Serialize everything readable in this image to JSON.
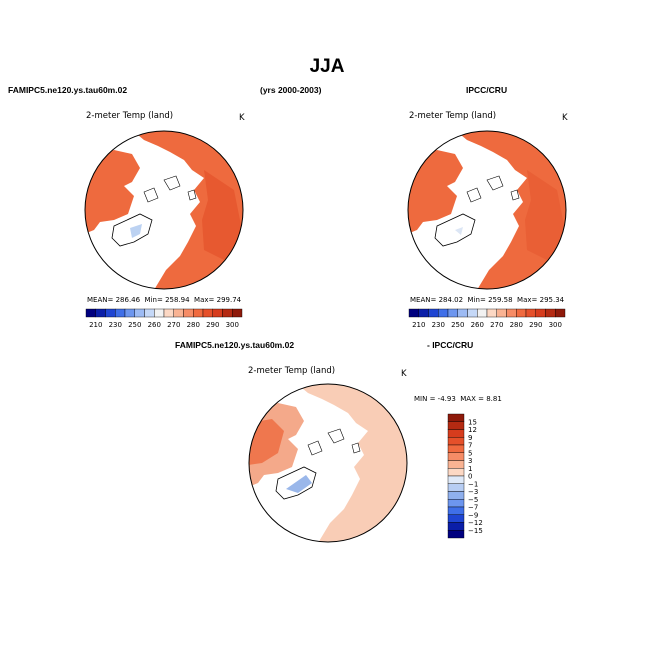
{
  "header": {
    "title": "JJA",
    "model_name": "FAMIPC5.ne120.ys.tau60m.02",
    "years": "(yrs 2000-2003)",
    "obs_name": "IPCC/CRU",
    "diff_model_name": "FAMIPC5.ne120.ys.tau60m.02",
    "diff_obs_name": "- IPCC/CRU"
  },
  "panels": {
    "model": {
      "variable": "2-meter Temp (land)",
      "units": "K",
      "stats": {
        "mean_label": "MEAN=",
        "mean": "286.46",
        "min_label": "Min=",
        "min": "258.94",
        "max_label": "Max=",
        "max": "299.74"
      }
    },
    "obs": {
      "variable": "2-meter Temp (land)",
      "units": "K",
      "stats": {
        "mean_label": "MEAN=",
        "mean": "284.02",
        "min_label": "Min=",
        "min": "259.58",
        "max_label": "Max=",
        "max": "295.34"
      }
    },
    "diff": {
      "variable": "2-meter Temp (land)",
      "units": "K",
      "stats": {
        "min_label": "MIN =",
        "min": "-4.93",
        "max_label": "MAX =",
        "max": "8.81"
      }
    }
  },
  "abs_colorbar": {
    "labels": [
      "210",
      "230",
      "250",
      "260",
      "270",
      "280",
      "290",
      "300"
    ],
    "colors": [
      "#00007f",
      "#0a1ea8",
      "#1f45d2",
      "#3f6fe8",
      "#6d96ef",
      "#9dbbf4",
      "#c5d8f7",
      "#f2f2f2",
      "#fcd8c4",
      "#f9b393",
      "#f68c66",
      "#f06a3f",
      "#e5502a",
      "#d63c1d",
      "#b42a12",
      "#8e1a0a"
    ]
  },
  "diff_colorbar": {
    "labels": [
      "15",
      "12",
      "9",
      "7",
      "5",
      "3",
      "1",
      "0",
      "−1",
      "−3",
      "−5",
      "−7",
      "−9",
      "−12",
      "−15"
    ],
    "colors": [
      "#8e1a0a",
      "#b42a12",
      "#d63c1d",
      "#e5502a",
      "#f06a3f",
      "#f68c66",
      "#f9b393",
      "#fcd8c4",
      "#dfe9f8",
      "#b7cdf3",
      "#8fb0ee",
      "#6d96ef",
      "#3f6fe8",
      "#1f45d2",
      "#0a1ea8",
      "#00007f"
    ]
  },
  "colors": {
    "land_warm": "#ee6a3e",
    "land_warm_dark": "#e4532b",
    "land_diff": "#f9cdb6",
    "land_diff_dark": "#f4a98a",
    "ice_blue": "#bcd2f2",
    "greenland_diff": "#9ab7ea"
  }
}
